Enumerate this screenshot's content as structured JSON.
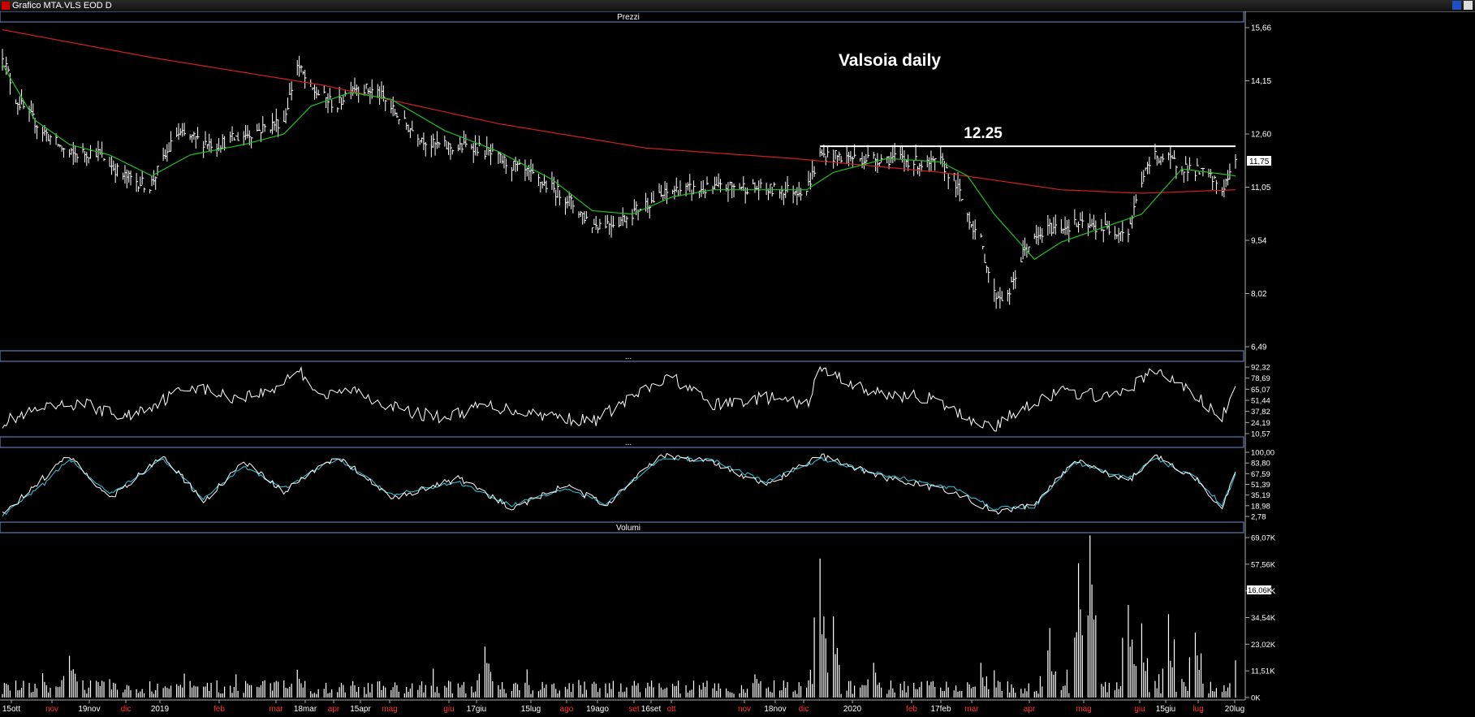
{
  "window": {
    "title": "Grafico MTA.VLS EOD D"
  },
  "panels": {
    "price": "Prezzi",
    "ind1": "...",
    "ind2": "...",
    "volume": "Volumi"
  },
  "colors": {
    "background": "#000000",
    "price_bars": "#ffffff",
    "ma_short": "#22c022",
    "ma_long": "#d02020",
    "rsi": "#ffffff",
    "stoch_k": "#ffffff",
    "stoch_d": "#36c8e0",
    "panel_divider": "#8aa6e0",
    "month_label_2019": "#ff3030"
  },
  "chart_data": [
    {
      "id": "price",
      "type": "ohlc",
      "title": "Valsoia daily",
      "annotation": {
        "label": "12.25",
        "value": 12.25,
        "from": "2019-12-16",
        "to": "2020-07-20"
      },
      "y_ticks": [
        "15,66",
        "14,15",
        "12,60",
        "11,05",
        "9,54",
        "8,02",
        "6,49"
      ],
      "ylim": [
        6.49,
        15.66
      ],
      "last_value": "11,75",
      "x_labels": [
        "15ott",
        "nov",
        "19nov",
        "dic",
        "2019",
        "feb",
        "mar",
        "18mar",
        "apr",
        "15apr",
        "mag",
        "giu",
        "17giu",
        "15lug",
        "ago",
        "19ago",
        "set",
        "16set",
        "ott",
        "nov",
        "18nov",
        "dic",
        "2020",
        "feb",
        "17feb",
        "mar",
        "apr",
        "mag",
        "giu",
        "15giu",
        "lug",
        "20lug"
      ],
      "close_keypoints": [
        [
          "2018-10-15",
          14.9
        ],
        [
          "2018-10-22",
          13.6
        ],
        [
          "2018-11-05",
          12.7
        ],
        [
          "2018-11-19",
          12.0
        ],
        [
          "2018-12-03",
          12.1
        ],
        [
          "2018-12-17",
          11.4
        ],
        [
          "2018-12-31",
          11.1
        ],
        [
          "2019-01-14",
          12.6
        ],
        [
          "2019-02-04",
          12.3
        ],
        [
          "2019-02-25",
          12.7
        ],
        [
          "2019-03-11",
          13.0
        ],
        [
          "2019-03-18",
          14.6
        ],
        [
          "2019-03-25",
          13.9
        ],
        [
          "2019-04-08",
          13.4
        ],
        [
          "2019-04-15",
          14.0
        ],
        [
          "2019-04-29",
          13.8
        ],
        [
          "2019-05-13",
          12.9
        ],
        [
          "2019-05-27",
          12.3
        ],
        [
          "2019-06-10",
          12.2
        ],
        [
          "2019-06-17",
          12.3
        ],
        [
          "2019-07-01",
          11.9
        ],
        [
          "2019-07-15",
          11.5
        ],
        [
          "2019-08-05",
          10.8
        ],
        [
          "2019-08-19",
          10.0
        ],
        [
          "2019-09-02",
          10.1
        ],
        [
          "2019-09-16",
          10.6
        ],
        [
          "2019-10-01",
          11.0
        ],
        [
          "2019-10-15",
          11.0
        ],
        [
          "2019-11-04",
          11.1
        ],
        [
          "2019-11-18",
          11.0
        ],
        [
          "2019-12-09",
          11.0
        ],
        [
          "2019-12-16",
          12.0
        ],
        [
          "2020-01-06",
          11.9
        ],
        [
          "2020-01-27",
          11.9
        ],
        [
          "2020-02-10",
          11.7
        ],
        [
          "2020-02-17",
          11.8
        ],
        [
          "2020-02-24",
          11.3
        ],
        [
          "2020-03-02",
          10.3
        ],
        [
          "2020-03-09",
          9.5
        ],
        [
          "2020-03-16",
          8.0
        ],
        [
          "2020-03-23",
          7.9
        ],
        [
          "2020-04-01",
          9.3
        ],
        [
          "2020-04-14",
          9.9
        ],
        [
          "2020-04-28",
          10.0
        ],
        [
          "2020-05-11",
          9.9
        ],
        [
          "2020-05-25",
          9.8
        ],
        [
          "2020-06-01",
          11.3
        ],
        [
          "2020-06-08",
          12.0
        ],
        [
          "2020-06-22",
          11.7
        ],
        [
          "2020-07-06",
          11.4
        ],
        [
          "2020-07-13",
          11.0
        ],
        [
          "2020-07-20",
          11.75
        ]
      ],
      "ma_short_keypoints": [
        [
          "2018-10-15",
          14.6
        ],
        [
          "2018-11-01",
          13.0
        ],
        [
          "2018-11-19",
          12.3
        ],
        [
          "2018-12-10",
          12.0
        ],
        [
          "2019-01-01",
          11.4
        ],
        [
          "2019-01-21",
          12.0
        ],
        [
          "2019-02-18",
          12.3
        ],
        [
          "2019-03-11",
          12.6
        ],
        [
          "2019-03-25",
          13.4
        ],
        [
          "2019-04-15",
          13.8
        ],
        [
          "2019-05-06",
          13.6
        ],
        [
          "2019-06-03",
          12.7
        ],
        [
          "2019-07-01",
          12.1
        ],
        [
          "2019-07-29",
          11.3
        ],
        [
          "2019-08-19",
          10.4
        ],
        [
          "2019-09-09",
          10.3
        ],
        [
          "2019-09-30",
          10.8
        ],
        [
          "2019-10-21",
          11.0
        ],
        [
          "2019-11-18",
          11.0
        ],
        [
          "2019-12-09",
          11.0
        ],
        [
          "2019-12-23",
          11.5
        ],
        [
          "2020-01-20",
          11.9
        ],
        [
          "2020-02-17",
          11.8
        ],
        [
          "2020-03-02",
          11.4
        ],
        [
          "2020-03-16",
          10.3
        ],
        [
          "2020-04-06",
          9.0
        ],
        [
          "2020-04-20",
          9.5
        ],
        [
          "2020-05-11",
          9.9
        ],
        [
          "2020-06-01",
          10.3
        ],
        [
          "2020-06-22",
          11.6
        ],
        [
          "2020-07-20",
          11.4
        ]
      ],
      "ma_long_keypoints": [
        [
          "2018-10-15",
          15.6
        ],
        [
          "2019-01-01",
          14.8
        ],
        [
          "2019-04-01",
          14.0
        ],
        [
          "2019-07-01",
          12.9
        ],
        [
          "2019-09-16",
          12.2
        ],
        [
          "2019-12-02",
          11.9
        ],
        [
          "2020-02-17",
          11.5
        ],
        [
          "2020-04-20",
          11.0
        ],
        [
          "2020-06-01",
          10.9
        ],
        [
          "2020-07-20",
          11.0
        ]
      ]
    },
    {
      "id": "rsi",
      "type": "line",
      "y_ticks": [
        "92,32",
        "78,69",
        "65,07",
        "51,44",
        "37,82",
        "24,19",
        "10,57"
      ],
      "ylim": [
        10.57,
        92.32
      ],
      "keypoints": [
        [
          "2018-10-15",
          25
        ],
        [
          "2018-11-05",
          40
        ],
        [
          "2018-11-26",
          48
        ],
        [
          "2018-12-17",
          30
        ],
        [
          "2019-01-07",
          52
        ],
        [
          "2019-01-21",
          70
        ],
        [
          "2019-02-11",
          55
        ],
        [
          "2019-03-04",
          62
        ],
        [
          "2019-03-18",
          90
        ],
        [
          "2019-04-01",
          55
        ],
        [
          "2019-04-15",
          65
        ],
        [
          "2019-05-13",
          38
        ],
        [
          "2019-06-03",
          30
        ],
        [
          "2019-06-24",
          45
        ],
        [
          "2019-07-22",
          35
        ],
        [
          "2019-08-19",
          25
        ],
        [
          "2019-09-09",
          55
        ],
        [
          "2019-09-30",
          80
        ],
        [
          "2019-10-21",
          45
        ],
        [
          "2019-11-18",
          55
        ],
        [
          "2019-12-09",
          45
        ],
        [
          "2019-12-16",
          90
        ],
        [
          "2020-01-13",
          60
        ],
        [
          "2020-02-10",
          55
        ],
        [
          "2020-03-02",
          30
        ],
        [
          "2020-03-16",
          18
        ],
        [
          "2020-04-01",
          45
        ],
        [
          "2020-04-20",
          62
        ],
        [
          "2020-05-18",
          55
        ],
        [
          "2020-06-08",
          88
        ],
        [
          "2020-06-22",
          70
        ],
        [
          "2020-07-13",
          30
        ],
        [
          "2020-07-20",
          65
        ]
      ]
    },
    {
      "id": "stochastic",
      "type": "line",
      "y_ticks": [
        "100,00",
        "83,80",
        "67,59",
        "51,39",
        "35,19",
        "18,98",
        "2,78"
      ],
      "ylim": [
        2.78,
        100.0
      ],
      "series": [
        {
          "line": "k",
          "keypoints": [
            [
              "2018-10-15",
              5
            ],
            [
              "2018-11-05",
              60
            ],
            [
              "2018-11-19",
              95
            ],
            [
              "2018-12-10",
              30
            ],
            [
              "2019-01-07",
              95
            ],
            [
              "2019-01-28",
              25
            ],
            [
              "2019-02-18",
              85
            ],
            [
              "2019-03-11",
              40
            ],
            [
              "2019-04-08",
              95
            ],
            [
              "2019-05-06",
              30
            ],
            [
              "2019-06-10",
              60
            ],
            [
              "2019-07-08",
              15
            ],
            [
              "2019-08-05",
              50
            ],
            [
              "2019-08-26",
              20
            ],
            [
              "2019-09-23",
              95
            ],
            [
              "2019-10-21",
              85
            ],
            [
              "2019-11-18",
              50
            ],
            [
              "2019-12-16",
              95
            ],
            [
              "2020-01-20",
              60
            ],
            [
              "2020-02-24",
              40
            ],
            [
              "2020-03-16",
              10
            ],
            [
              "2020-04-06",
              20
            ],
            [
              "2020-04-27",
              90
            ],
            [
              "2020-05-25",
              55
            ],
            [
              "2020-06-08",
              95
            ],
            [
              "2020-06-29",
              60
            ],
            [
              "2020-07-13",
              15
            ],
            [
              "2020-07-20",
              75
            ]
          ]
        },
        {
          "line": "d",
          "keypoints": [
            [
              "2018-10-15",
              3
            ],
            [
              "2018-11-05",
              50
            ],
            [
              "2018-11-19",
              90
            ],
            [
              "2018-12-10",
              35
            ],
            [
              "2019-01-07",
              90
            ],
            [
              "2019-01-28",
              30
            ],
            [
              "2019-02-18",
              80
            ],
            [
              "2019-03-11",
              45
            ],
            [
              "2019-04-08",
              92
            ],
            [
              "2019-05-06",
              35
            ],
            [
              "2019-06-10",
              55
            ],
            [
              "2019-07-08",
              20
            ],
            [
              "2019-08-05",
              45
            ],
            [
              "2019-08-26",
              22
            ],
            [
              "2019-09-23",
              90
            ],
            [
              "2019-10-21",
              88
            ],
            [
              "2019-11-18",
              55
            ],
            [
              "2019-12-16",
              90
            ],
            [
              "2020-01-20",
              65
            ],
            [
              "2020-02-24",
              45
            ],
            [
              "2020-03-16",
              15
            ],
            [
              "2020-04-06",
              18
            ],
            [
              "2020-04-27",
              85
            ],
            [
              "2020-05-25",
              60
            ],
            [
              "2020-06-08",
              90
            ],
            [
              "2020-06-29",
              62
            ],
            [
              "2020-07-13",
              20
            ],
            [
              "2020-07-20",
              65
            ]
          ]
        }
      ]
    },
    {
      "id": "volume",
      "type": "bar",
      "y_ticks": [
        "69,07K",
        "57,56K",
        "46,05K",
        "34,54K",
        "23,02K",
        "11,51K",
        "0K"
      ],
      "ylim": [
        0,
        69070
      ],
      "last_value": "16,06K",
      "spikes": [
        [
          "2018-11-19",
          18000
        ],
        [
          "2019-03-18",
          12000
        ],
        [
          "2019-06-24",
          22000
        ],
        [
          "2019-12-16",
          60000
        ],
        [
          "2019-12-23",
          35000
        ],
        [
          "2020-01-13",
          15000
        ],
        [
          "2020-03-09",
          15000
        ],
        [
          "2020-04-14",
          30000
        ],
        [
          "2020-04-29",
          58000
        ],
        [
          "2020-05-05",
          70000
        ],
        [
          "2020-05-25",
          40000
        ],
        [
          "2020-06-01",
          32000
        ],
        [
          "2020-06-15",
          36000
        ],
        [
          "2020-06-29",
          28000
        ],
        [
          "2020-07-20",
          16060
        ]
      ]
    }
  ]
}
